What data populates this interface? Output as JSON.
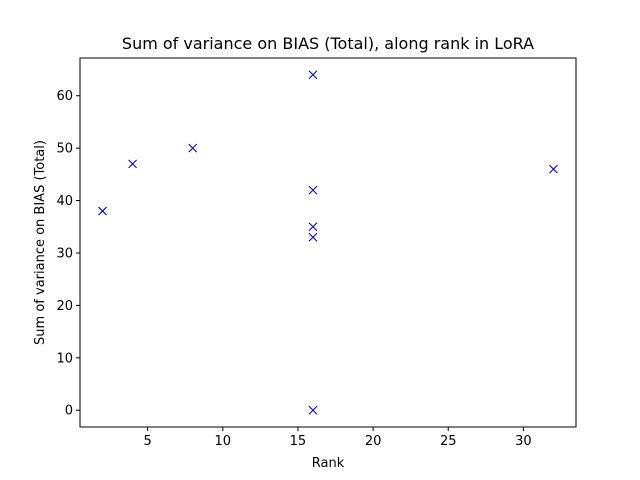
{
  "chart_data": {
    "type": "scatter",
    "title": "Sum of variance on BIAS (Total), along rank in LoRA",
    "xlabel": "Rank",
    "ylabel": "Sum of variance on BIAS (Total)",
    "xlim": [
      0.5,
      33.5
    ],
    "ylim": [
      -3.2,
      67.2
    ],
    "xticks": [
      5,
      10,
      15,
      20,
      25,
      30
    ],
    "yticks": [
      0,
      10,
      20,
      30,
      40,
      50,
      60
    ],
    "grid": false,
    "legend": "none",
    "marker": "x",
    "marker_color": "#0000ff",
    "series": [
      {
        "x": [
          2,
          4,
          8,
          16,
          16,
          16,
          16,
          16,
          32
        ],
        "y": [
          38,
          47,
          50,
          64,
          42,
          35,
          33,
          0,
          46
        ]
      }
    ]
  }
}
